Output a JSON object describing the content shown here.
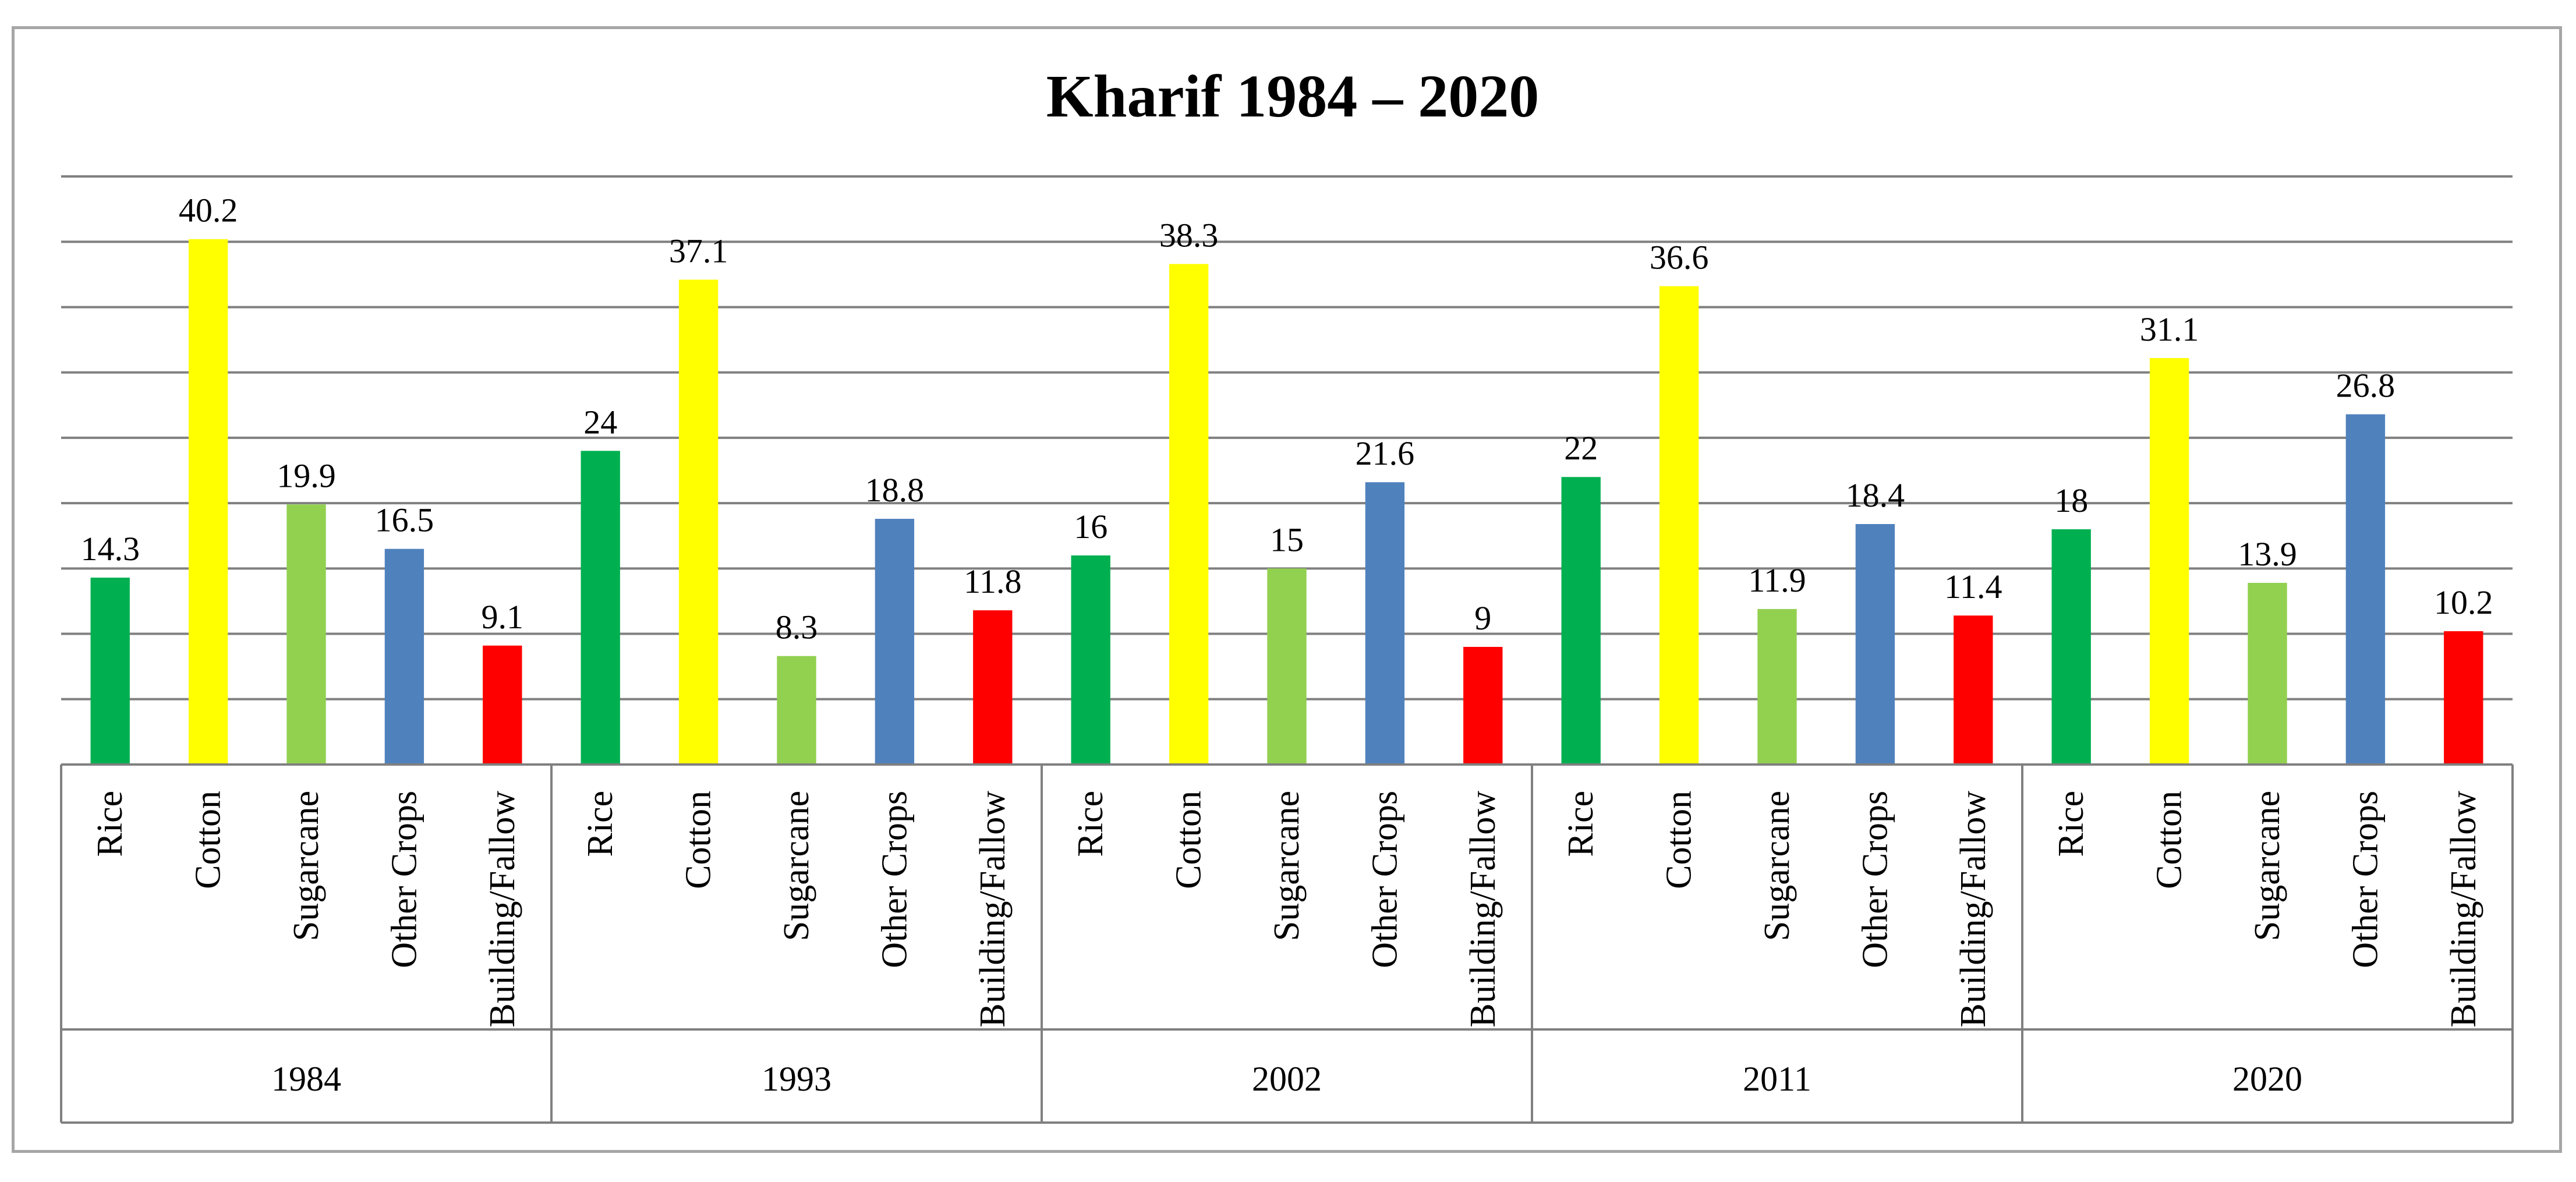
{
  "chart_data": {
    "type": "bar",
    "title": "Kharif 1984 – 2020",
    "xlabel": "",
    "ylabel": "",
    "ylim": [
      0,
      45
    ],
    "grid": true,
    "groups": [
      {
        "year": "1984",
        "bars": [
          {
            "category": "Rice",
            "value": 14.3,
            "label": "14.3"
          },
          {
            "category": "Cotton",
            "value": 40.2,
            "label": "40.2"
          },
          {
            "category": "Sugarcane",
            "value": 19.9,
            "label": "19.9"
          },
          {
            "category": "Other Crops",
            "value": 16.5,
            "label": "16.5"
          },
          {
            "category": "Building/Fallow",
            "value": 9.1,
            "label": "9.1"
          }
        ]
      },
      {
        "year": "1993",
        "bars": [
          {
            "category": "Rice",
            "value": 24,
            "label": "24"
          },
          {
            "category": "Cotton",
            "value": 37.1,
            "label": "37.1"
          },
          {
            "category": "Sugarcane",
            "value": 8.3,
            "label": "8.3"
          },
          {
            "category": "Other Crops",
            "value": 18.8,
            "label": "18.8"
          },
          {
            "category": "Building/Fallow",
            "value": 11.8,
            "label": "11.8"
          }
        ]
      },
      {
        "year": "2002",
        "bars": [
          {
            "category": "Rice",
            "value": 16,
            "label": "16"
          },
          {
            "category": "Cotton",
            "value": 38.3,
            "label": "38.3"
          },
          {
            "category": "Sugarcane",
            "value": 15,
            "label": "15"
          },
          {
            "category": "Other Crops",
            "value": 21.6,
            "label": "21.6"
          },
          {
            "category": "Building/Fallow",
            "value": 9,
            "label": "9"
          }
        ]
      },
      {
        "year": "2011",
        "bars": [
          {
            "category": "Rice",
            "value": 22,
            "label": "22"
          },
          {
            "category": "Cotton",
            "value": 36.6,
            "label": "36.6"
          },
          {
            "category": "Sugarcane",
            "value": 11.9,
            "label": "11.9"
          },
          {
            "category": "Other Crops",
            "value": 18.4,
            "label": "18.4"
          },
          {
            "category": "Building/Fallow",
            "value": 11.4,
            "label": "11.4"
          }
        ]
      },
      {
        "year": "2020",
        "bars": [
          {
            "category": "Rice",
            "value": 18,
            "label": "18"
          },
          {
            "category": "Cotton",
            "value": 31.1,
            "label": "31.1"
          },
          {
            "category": "Sugarcane",
            "value": 13.9,
            "label": "13.9"
          },
          {
            "category": "Other Crops",
            "value": 26.8,
            "label": "26.8"
          },
          {
            "category": "Building/Fallow",
            "value": 10.2,
            "label": "10.2"
          }
        ]
      }
    ],
    "colors": {
      "Rice": "#00b050",
      "Cotton": "#ffff00",
      "Sugarcane": "#92d050",
      "Other Crops": "#4f81bd",
      "Building/Fallow": "#ff0000"
    },
    "gridline_color": "#808080",
    "axis_color": "#808080"
  }
}
